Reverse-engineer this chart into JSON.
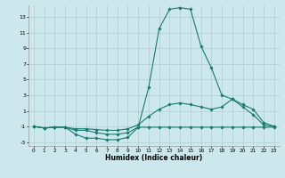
{
  "xlabel": "Humidex (Indice chaleur)",
  "bg_color": "#cce8ed",
  "grid_color": "#b0cdd4",
  "line_color": "#1a7a6e",
  "xlim": [
    -0.5,
    23.5
  ],
  "ylim": [
    -3.5,
    14.5
  ],
  "yticks": [
    -3,
    -1,
    1,
    3,
    5,
    7,
    9,
    11,
    13
  ],
  "xticks": [
    0,
    1,
    2,
    3,
    4,
    5,
    6,
    7,
    8,
    9,
    10,
    11,
    12,
    13,
    14,
    15,
    16,
    17,
    18,
    19,
    20,
    21,
    22,
    23
  ],
  "series": [
    {
      "x": [
        0,
        1,
        2,
        3,
        4,
        5,
        6,
        7,
        8,
        9,
        10,
        11,
        12,
        13,
        14,
        15,
        16,
        17,
        18,
        19,
        20,
        21,
        22,
        23
      ],
      "y": [
        -1,
        -1.2,
        -1.1,
        -1.1,
        -2,
        -2.5,
        -2.5,
        -2.7,
        -2.7,
        -2.4,
        -1.1,
        4,
        11.5,
        14,
        14.2,
        14,
        9.3,
        6.5,
        3,
        2.5,
        1.5,
        0.5,
        -0.8,
        -1
      ]
    },
    {
      "x": [
        0,
        1,
        2,
        3,
        4,
        5,
        6,
        7,
        8,
        9,
        10,
        11,
        12,
        13,
        14,
        15,
        16,
        17,
        18,
        19,
        20,
        21,
        22,
        23
      ],
      "y": [
        -1,
        -1.2,
        -1.1,
        -1.1,
        -1.5,
        -1.5,
        -1.8,
        -2,
        -2,
        -1.8,
        -1.1,
        -1.1,
        -1.1,
        -1.1,
        -1.1,
        -1.1,
        -1.1,
        -1.1,
        -1.1,
        -1.1,
        -1.1,
        -1.1,
        -1.1,
        -1.1
      ]
    },
    {
      "x": [
        0,
        1,
        2,
        3,
        4,
        5,
        6,
        7,
        8,
        9,
        10,
        11,
        12,
        13,
        14,
        15,
        16,
        17,
        18,
        19,
        20,
        21,
        22,
        23
      ],
      "y": [
        -1,
        -1.2,
        -1.1,
        -1.1,
        -1.3,
        -1.3,
        -1.4,
        -1.5,
        -1.5,
        -1.3,
        -0.8,
        0.3,
        1.2,
        1.8,
        2.0,
        1.8,
        1.5,
        1.2,
        1.5,
        2.5,
        1.8,
        1.2,
        -0.5,
        -1
      ]
    }
  ]
}
